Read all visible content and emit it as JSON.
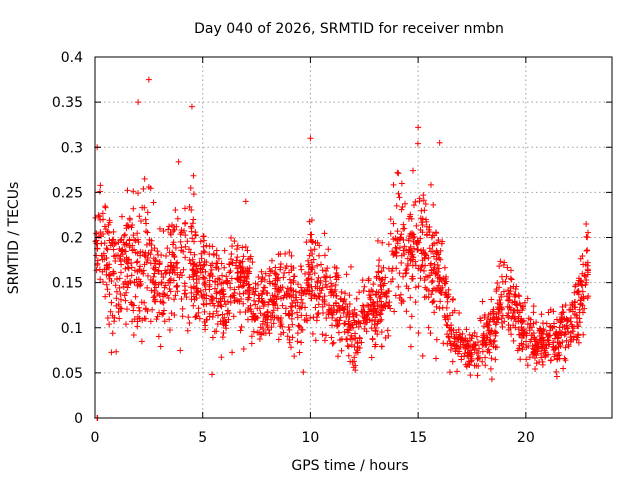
{
  "chart_data": {
    "type": "scatter",
    "title": "Day 040 of 2026, SRMTID for receiver nmbn",
    "xlabel": "GPS time / hours",
    "ylabel": "SRMTID / TECUs",
    "xlim": [
      0,
      24
    ],
    "ylim": [
      0,
      0.4
    ],
    "xticks": [
      0,
      5,
      10,
      15,
      20
    ],
    "xtick_labels": [
      "0",
      "5",
      "10",
      "15",
      "20"
    ],
    "yticks": [
      0,
      0.05,
      0.1,
      0.15,
      0.2,
      0.25,
      0.3,
      0.35,
      0.4
    ],
    "ytick_labels": [
      "0",
      "0.05",
      "0.1",
      "0.15",
      "0.2",
      "0.25",
      "0.3",
      "0.35",
      "0.4"
    ],
    "grid": true,
    "marker": "plus",
    "color": "#ff0000",
    "series": [
      {
        "name": "SRMTID",
        "profile_x": [
          0.0,
          0.2,
          0.5,
          1.0,
          1.5,
          2.0,
          2.5,
          3.0,
          3.5,
          4.0,
          4.5,
          5.0,
          5.5,
          6.0,
          6.5,
          7.0,
          7.5,
          8.0,
          8.5,
          9.0,
          9.5,
          10.0,
          10.5,
          11.0,
          11.5,
          12.0,
          12.5,
          13.0,
          13.5,
          14.0,
          14.5,
          15.0,
          15.5,
          16.0,
          16.5,
          17.0,
          17.5,
          18.0,
          18.5,
          19.0,
          19.5,
          20.0,
          20.5,
          21.0,
          21.5,
          22.0,
          22.5,
          22.9
        ],
        "profile_mean": [
          0.2,
          0.22,
          0.18,
          0.15,
          0.17,
          0.16,
          0.19,
          0.14,
          0.16,
          0.19,
          0.17,
          0.15,
          0.14,
          0.12,
          0.15,
          0.14,
          0.13,
          0.12,
          0.14,
          0.13,
          0.12,
          0.16,
          0.14,
          0.13,
          0.12,
          0.09,
          0.11,
          0.12,
          0.13,
          0.19,
          0.18,
          0.2,
          0.17,
          0.16,
          0.1,
          0.08,
          0.07,
          0.09,
          0.1,
          0.14,
          0.12,
          0.09,
          0.085,
          0.08,
          0.09,
          0.1,
          0.13,
          0.16
        ],
        "profile_spread": [
          0.06,
          0.06,
          0.05,
          0.05,
          0.07,
          0.07,
          0.09,
          0.06,
          0.06,
          0.08,
          0.07,
          0.05,
          0.05,
          0.04,
          0.05,
          0.05,
          0.045,
          0.04,
          0.045,
          0.045,
          0.045,
          0.06,
          0.05,
          0.04,
          0.04,
          0.03,
          0.035,
          0.04,
          0.05,
          0.06,
          0.06,
          0.08,
          0.06,
          0.05,
          0.04,
          0.025,
          0.02,
          0.03,
          0.04,
          0.04,
          0.04,
          0.03,
          0.025,
          0.025,
          0.03,
          0.035,
          0.04,
          0.04
        ],
        "sample_count": 2200,
        "peaks": [
          [
            2.5,
            0.375
          ],
          [
            2.0,
            0.35
          ],
          [
            4.5,
            0.345
          ],
          [
            15.0,
            0.322
          ],
          [
            10.0,
            0.31
          ],
          [
            16.0,
            0.305
          ],
          [
            0.1,
            0.3
          ],
          [
            7.0,
            0.24
          ],
          [
            22.8,
            0.215
          ]
        ],
        "zero_points": [
          [
            0.1,
            0.0
          ],
          [
            0.12,
            0.0
          ]
        ]
      }
    ]
  }
}
